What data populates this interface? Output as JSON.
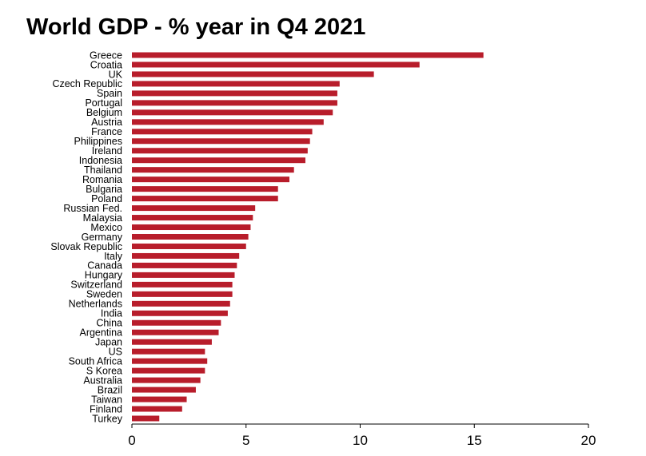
{
  "chart_data": {
    "type": "bar",
    "orientation": "horizontal",
    "title": "World GDP - % year in Q4 2021",
    "categories": [
      "Greece",
      "Croatia",
      "UK",
      "Czech Republic",
      "Spain",
      "Portugal",
      "Belgium",
      "Austria",
      "France",
      "Philippines",
      "Ireland",
      "Indonesia",
      "Thailand",
      "Romania",
      "Bulgaria",
      "Poland",
      "Russian Fed.",
      "Malaysia",
      "Mexico",
      "Germany",
      "Slovak Republic",
      "Italy",
      "Canada",
      "Hungary",
      "Switzerland",
      "Sweden",
      "Netherlands",
      "India",
      "China",
      "Argentina",
      "Japan",
      "US",
      "South Africa",
      "S Korea",
      "Australia",
      "Brazil",
      "Taiwan",
      "Finland",
      "Turkey"
    ],
    "values": [
      15.4,
      12.6,
      10.6,
      9.1,
      9.0,
      9.0,
      8.8,
      8.4,
      7.9,
      7.8,
      7.7,
      7.6,
      7.1,
      6.9,
      6.4,
      6.4,
      5.4,
      5.3,
      5.2,
      5.1,
      5.0,
      4.7,
      4.6,
      4.5,
      4.4,
      4.4,
      4.3,
      4.2,
      3.9,
      3.8,
      3.5,
      3.2,
      3.3,
      3.2,
      3.0,
      2.8,
      2.4,
      2.2,
      1.2
    ],
    "xlim": [
      0,
      20
    ],
    "xticks": [
      0,
      5,
      10,
      15,
      20
    ],
    "xtick_labels": [
      "0",
      "5",
      "10",
      "15",
      "20"
    ],
    "grid": false,
    "legend": "none",
    "bar_color": "#b81d2b"
  }
}
